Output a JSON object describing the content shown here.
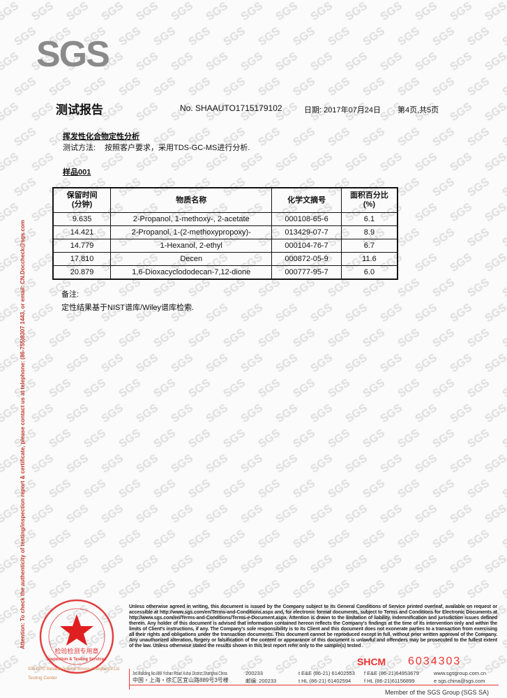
{
  "watermark": "SGS",
  "logo": "SGS",
  "header": {
    "title": "测试报告",
    "report_no": "No. SHAAUTO1715179102",
    "date": "日期: 2017年07月24日",
    "page": "第4页,共5页"
  },
  "section_title": "挥发性化合物定性分析",
  "method": {
    "label": "测试方法:",
    "value": "按照客户要求，采用TDS-GC-MS进行分析."
  },
  "sample": "样品001",
  "table": {
    "headers": [
      "保留时间\n(分钟)",
      "物质名称",
      "化学文摘号",
      "面积百分比\n(%)"
    ],
    "rows": [
      [
        "9.635",
        "2-Propanol, 1-methoxy-, 2-acetate",
        "000108-65-6",
        "6.1"
      ],
      [
        "14.421",
        "2-Propanol, 1-(2-methoxypropoxy)-",
        "013429-07-7",
        "8.9"
      ],
      [
        "14.779",
        "1-Hexanol, 2-ethyl",
        "000104-76-7",
        "6.7"
      ],
      [
        "17.810",
        "Decen",
        "000872-05-9",
        "11.6"
      ],
      [
        "20.879",
        "1,6-Dioxacyclododecan-7,12-dione",
        "000777-95-7",
        "6.0"
      ]
    ]
  },
  "notes": {
    "label": "备注:",
    "text": "定性结果基于NIST谱库/Wiley谱库检索."
  },
  "side_text": "Attention: To check the authenticity of testing/inspection report & certificate, please contact us at telephone: (86-755)8307 1443, or email: CN.Doccheck@sgs.com",
  "footer": {
    "disclaimer": "Unless otherwise agreed in writing, this document is issued by the Company subject to its General Conditions of Service printed overleaf, available on request or accessible at http://www.sgs.com/en/Terms-and-Conditions.aspx and, for electronic format documents, subject to Terms and Conditions for Electronic Documents at http://www.sgs.com/en/Terms-and-Conditions/Terms-e-Document.aspx. Attention is drawn to the limitation of liability, indemnification and jurisdiction issues defined therein. Any holder of this document is advised that information contained hereon reflects the Company's findings at the time of its intervention only and within the limits of Client's instructions, if any. The Company's sole responsibility is to its Client and this document does not exonerate parties to a transaction from exercising all their rights and obligations under the transaction documents. This document cannot be reproduced except in full, without prior written approval of the Company. Any unauthorized alteration, forgery or falsification of the content or appearance of this document is unlawful and offenders may be prosecuted to the fullest extent of the law. Unless otherwise stated the results shown in this test report refer only to the sample(s) tested .",
    "shcm": "SHCM",
    "serial": "6034303",
    "address_en": "3rd Building,No.889 Yishan Road Xuhui District,Shanghai China",
    "postcode_en": "200233",
    "address_cn": "中国・上海・徐汇区宜山路889号3号楼",
    "postcode_cn": "邮编: 200233",
    "tel1": "t E&E (86-21) 61402553",
    "fax1": "f E&E (86-21)64953679",
    "tel2": "t HL (86-21) 61402594",
    "fax2": "f HL (86-21)61156899",
    "web": "www.sgsgroup.com.cn",
    "email": "e sgs.china@sgs.com",
    "member": "Member of the SGS Group (SGS SA)"
  },
  "seal": {
    "text_cn": "检验检测专用章",
    "text_en": "Inspection & Testing Services",
    "ring": "通标标准技术服务(上海)有限公司"
  },
  "company_line1": "SGS-CSTC Standards Technical Services (Shanghai) Co.,Ltd.",
  "company_line2": "Testing Center",
  "colors": {
    "accent_red": "#e33333",
    "logo_gray": "#8a8a8a",
    "watermark": "#dcdcdc"
  }
}
